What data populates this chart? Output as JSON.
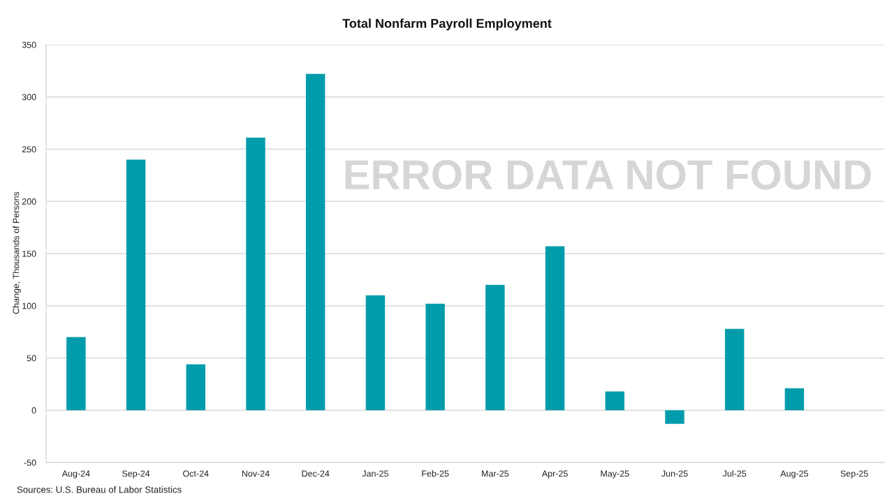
{
  "chart_data": {
    "type": "bar",
    "title": "Total Nonfarm Payroll Employment",
    "ylabel": "Change, Thousands of Persons",
    "categories": [
      "Aug-24",
      "Sep-24",
      "Oct-24",
      "Nov-24",
      "Dec-24",
      "Jan-25",
      "Feb-25",
      "Mar-25",
      "Apr-25",
      "May-25",
      "Jun-25",
      "Jul-25",
      "Aug-25",
      "Sep-25"
    ],
    "values": [
      70,
      240,
      44,
      261,
      322,
      110,
      102,
      120,
      157,
      18,
      -13,
      78,
      21,
      null
    ],
    "color": "#019cab",
    "ylim": [
      -50,
      350
    ],
    "yticks": [
      -50,
      0,
      50,
      100,
      150,
      200,
      250,
      300,
      350
    ],
    "grid": "y",
    "annotations": [
      "ERROR DATA NOT FOUND",
      "Sources: U.S. Bureau of Labor Statistics"
    ]
  }
}
